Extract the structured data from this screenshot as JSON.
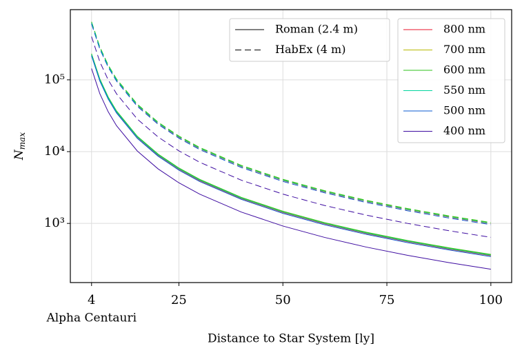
{
  "chart_data": {
    "type": "line",
    "xlabel": "Distance to Star System [ly]",
    "ylabel": [
      "N",
      "max"
    ],
    "annotation": {
      "x": 4,
      "text": "Alpha Centauri"
    },
    "x": [
      4,
      6,
      8,
      10,
      15,
      20,
      25,
      30,
      40,
      50,
      60,
      70,
      80,
      90,
      100
    ],
    "xlim": [
      -1.1,
      105
    ],
    "xticks": [
      4,
      25,
      50,
      75,
      100
    ],
    "ylim": [
      150,
      950000
    ],
    "yticks": [
      {
        "value": 1000,
        "label": "10³"
      },
      {
        "value": 10000,
        "label": "10⁴"
      },
      {
        "value": 100000,
        "label": "10⁵"
      }
    ],
    "log_y": true,
    "grid": true,
    "legend_loc": "upper right",
    "telescopes": [
      {
        "name": "Roman (2.4 m)",
        "dash": "solid"
      },
      {
        "name": "HabEx (4 m)",
        "dash": "dashed"
      }
    ],
    "series": [
      {
        "name": "800 nm",
        "color": "#e8102a",
        "values": [
          [
            221900,
            98600,
            55500,
            35500,
            15800,
            8880,
            5680,
            3940,
            2220,
            1420,
            986,
            724,
            555,
            438,
            355
          ],
          [
            618800,
            275000,
            154700,
            99000,
            44000,
            24750,
            15840,
            11000,
            6190,
            3960,
            2750,
            2020,
            1547,
            1222,
            990
          ]
        ]
      },
      {
        "name": "700 nm",
        "color": "#b7b800",
        "values": [
          [
            228100,
            101400,
            57000,
            36500,
            16200,
            9130,
            5840,
            4060,
            2280,
            1460,
            1014,
            745,
            570,
            451,
            365
          ],
          [
            637500,
            283300,
            159400,
            102000,
            45300,
            25500,
            16320,
            11330,
            6380,
            4080,
            2830,
            2080,
            1594,
            1259,
            1020
          ]
        ]
      },
      {
        "name": "600 nm",
        "color": "#2ec21a",
        "values": [
          [
            231300,
            102800,
            57800,
            37000,
            16400,
            9250,
            5920,
            4110,
            2310,
            1480,
            1028,
            755,
            578,
            457,
            370
          ],
          [
            643800,
            286100,
            160900,
            103000,
            45800,
            25750,
            16480,
            11440,
            6440,
            4120,
            2860,
            2100,
            1609,
            1272,
            1030
          ]
        ]
      },
      {
        "name": "550 nm",
        "color": "#00d49c",
        "values": [
          [
            225000,
            100000,
            56300,
            36000,
            16000,
            9000,
            5760,
            4000,
            2250,
            1440,
            1000,
            735,
            563,
            444,
            360
          ],
          [
            625000,
            277800,
            156300,
            100000,
            44400,
            25000,
            16000,
            11110,
            6250,
            4000,
            2780,
            2040,
            1563,
            1235,
            1000
          ]
        ]
      },
      {
        "name": "500 nm",
        "color": "#0a5ad0",
        "values": [
          [
            215600,
            95800,
            53900,
            34500,
            15300,
            8630,
            5520,
            3830,
            2160,
            1380,
            958,
            704,
            539,
            426,
            345
          ],
          [
            600000,
            266700,
            150000,
            96000,
            42700,
            24000,
            15360,
            10670,
            6000,
            3840,
            2670,
            1959,
            1500,
            1185,
            960
          ]
        ]
      },
      {
        "name": "400 nm",
        "color": "#3c0aa0",
        "values": [
          [
            143800,
            63900,
            35900,
            23000,
            10200,
            5750,
            3680,
            2560,
            1440,
            920,
            639,
            469,
            359,
            284,
            230
          ],
          [
            400000,
            177800,
            100000,
            64000,
            28400,
            16000,
            10240,
            7110,
            4000,
            2560,
            1778,
            1306,
            1000,
            790,
            640
          ]
        ]
      }
    ]
  }
}
